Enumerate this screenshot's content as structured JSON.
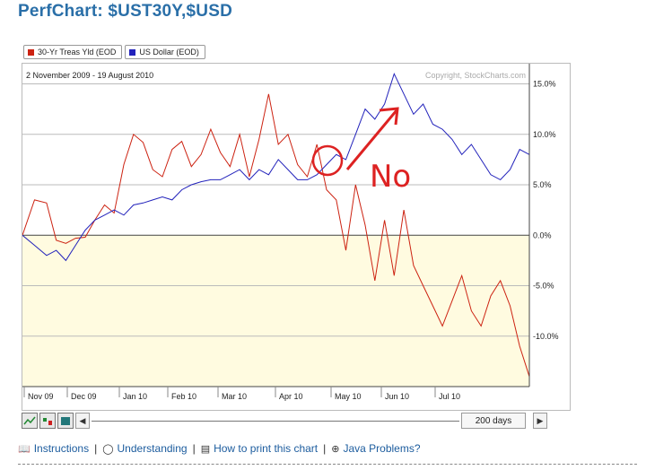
{
  "page": {
    "title": "PerfChart: $UST30Y,$USD"
  },
  "legend": [
    {
      "label": "30-Yr Treas Yld (EOD",
      "color": "#cc2211"
    },
    {
      "label": "US Dollar (EOD)",
      "color": "#2222bb"
    }
  ],
  "chart": {
    "date_range": "2 November 2009 - 19 August 2010",
    "copyright": "Copyright, StockCharts.com",
    "annotation_text": "No"
  },
  "toolbar": {
    "days_label": "200 days",
    "left_arrow": "◀",
    "right_arrow": "▶"
  },
  "links": {
    "instructions": "Instructions",
    "understanding": "Understanding",
    "how_to_print": "How to print this chart",
    "java_problems": "Java Problems?"
  },
  "chart_data": {
    "type": "line",
    "ylim": [
      -15,
      17
    ],
    "x_tick_labels": [
      "Nov 09",
      "Dec 09",
      "Jan 10",
      "Feb 10",
      "Mar 10",
      "Apr 10",
      "May 10",
      "Jun 10",
      "Jul 10"
    ],
    "y_ticks": [
      15,
      10,
      5,
      0,
      -5,
      -10
    ],
    "y_tick_labels": [
      "15.0%",
      "10.0%",
      "5.0%",
      "0.0%",
      "-5.0%",
      "-10.0%"
    ],
    "series": [
      {
        "name": "30-Yr Treas Yld (EOD",
        "color": "#cc2211",
        "x": [
          0,
          5,
          10,
          14,
          18,
          22,
          26,
          30,
          34,
          38,
          42,
          46,
          50,
          54,
          58,
          62,
          66,
          70,
          74,
          78,
          82,
          86,
          90,
          94,
          98,
          102,
          106,
          110,
          114,
          118,
          122,
          126,
          130,
          134,
          138,
          142,
          146,
          150,
          154,
          158,
          162,
          166,
          170,
          174,
          178,
          182,
          186,
          190,
          194,
          198,
          202,
          206,
          210
        ],
        "values": [
          0,
          3.5,
          3.2,
          -0.5,
          -0.8,
          -0.3,
          -0.2,
          1.5,
          3.0,
          2.2,
          7.0,
          10.0,
          9.2,
          6.5,
          5.8,
          8.5,
          9.3,
          6.8,
          8.0,
          10.5,
          8.2,
          6.8,
          10.0,
          5.8,
          9.5,
          14.0,
          9.0,
          10.0,
          7.0,
          5.8,
          9.0,
          4.5,
          3.5,
          -1.5,
          5.0,
          1.0,
          -4.5,
          1.5,
          -4.0,
          2.5,
          -3.0,
          -5.0,
          -7.0,
          -9.0,
          -6.5,
          -4.0,
          -7.5,
          -9.0,
          -6.0,
          -4.5,
          -7.0,
          -11.0,
          -14.0
        ]
      },
      {
        "name": "US Dollar (EOD)",
        "color": "#2222bb",
        "x": [
          0,
          5,
          10,
          14,
          18,
          22,
          26,
          30,
          34,
          38,
          42,
          46,
          50,
          54,
          58,
          62,
          66,
          70,
          74,
          78,
          82,
          86,
          90,
          94,
          98,
          102,
          106,
          110,
          114,
          118,
          122,
          126,
          130,
          134,
          138,
          142,
          146,
          150,
          154,
          158,
          162,
          166,
          170,
          174,
          178,
          182,
          186,
          190,
          194,
          198,
          202,
          206,
          210
        ],
        "values": [
          0,
          -1.0,
          -2.0,
          -1.5,
          -2.5,
          -1.0,
          0.5,
          1.5,
          2.0,
          2.5,
          2.0,
          3.0,
          3.2,
          3.5,
          3.8,
          3.5,
          4.5,
          5.0,
          5.3,
          5.5,
          5.5,
          6.0,
          6.5,
          5.5,
          6.5,
          6.0,
          7.5,
          6.5,
          5.5,
          5.5,
          6.0,
          7.0,
          8.0,
          7.5,
          10.0,
          12.5,
          11.5,
          13.0,
          16.0,
          14.0,
          12.0,
          13.0,
          11.0,
          10.5,
          9.5,
          8.0,
          9.0,
          7.5,
          6.0,
          5.5,
          6.5,
          8.5,
          8.0
        ]
      }
    ]
  }
}
